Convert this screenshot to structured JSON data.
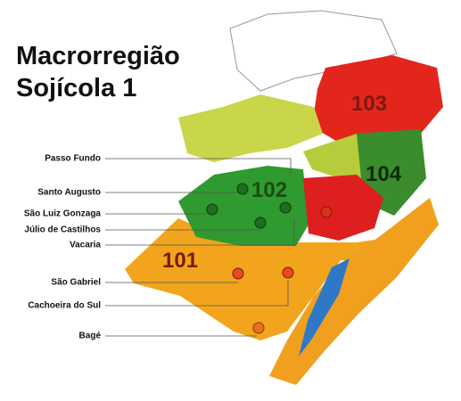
{
  "title": {
    "line1": "Macrorregião",
    "line2": "Sojícola 1"
  },
  "regions": [
    "101",
    "102",
    "103",
    "104"
  ],
  "cities": [
    "Passo Fundo",
    "Santo Augusto",
    "São Luiz Gonzaga",
    "Júlio de Castilhos",
    "Vacaria",
    "São Gabriel",
    "Cachoeira do Sul",
    "Bagé"
  ]
}
